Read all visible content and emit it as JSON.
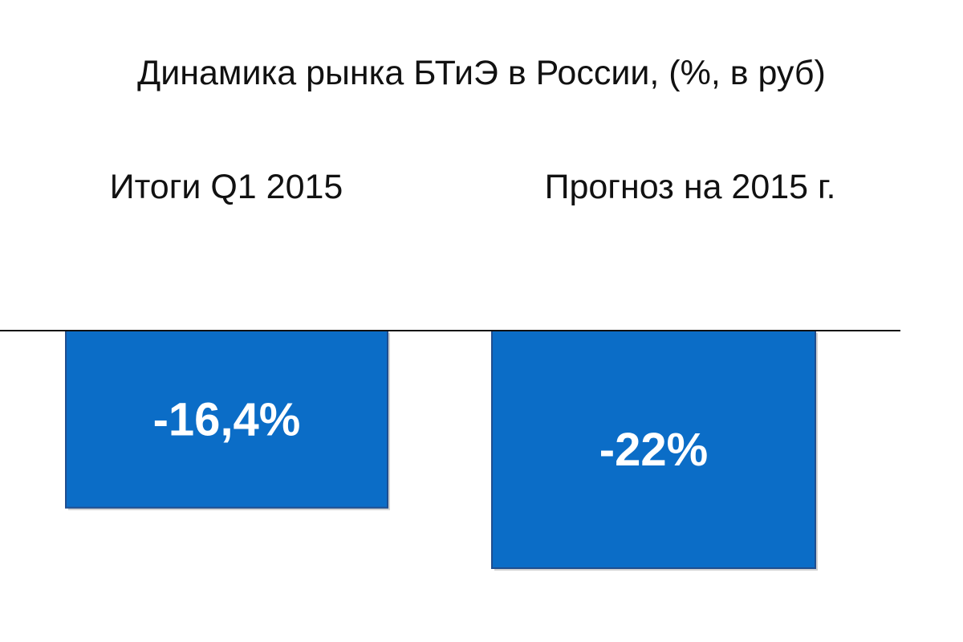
{
  "chart_data": {
    "type": "bar",
    "title": "Динамика рынка БТиЭ в России, (%, в руб)",
    "categories": [
      "Итоги Q1 2015",
      "Прогноз на 2015 г."
    ],
    "values": [
      -16.4,
      -22
    ],
    "value_labels": [
      "-16,4%",
      "-22%"
    ],
    "ylim": [
      -22,
      0
    ],
    "grid": false,
    "legend": "none",
    "bar_color": "#0B6DC7",
    "bar_border_color": "#1F4E8F",
    "axis_color": "#111111"
  }
}
